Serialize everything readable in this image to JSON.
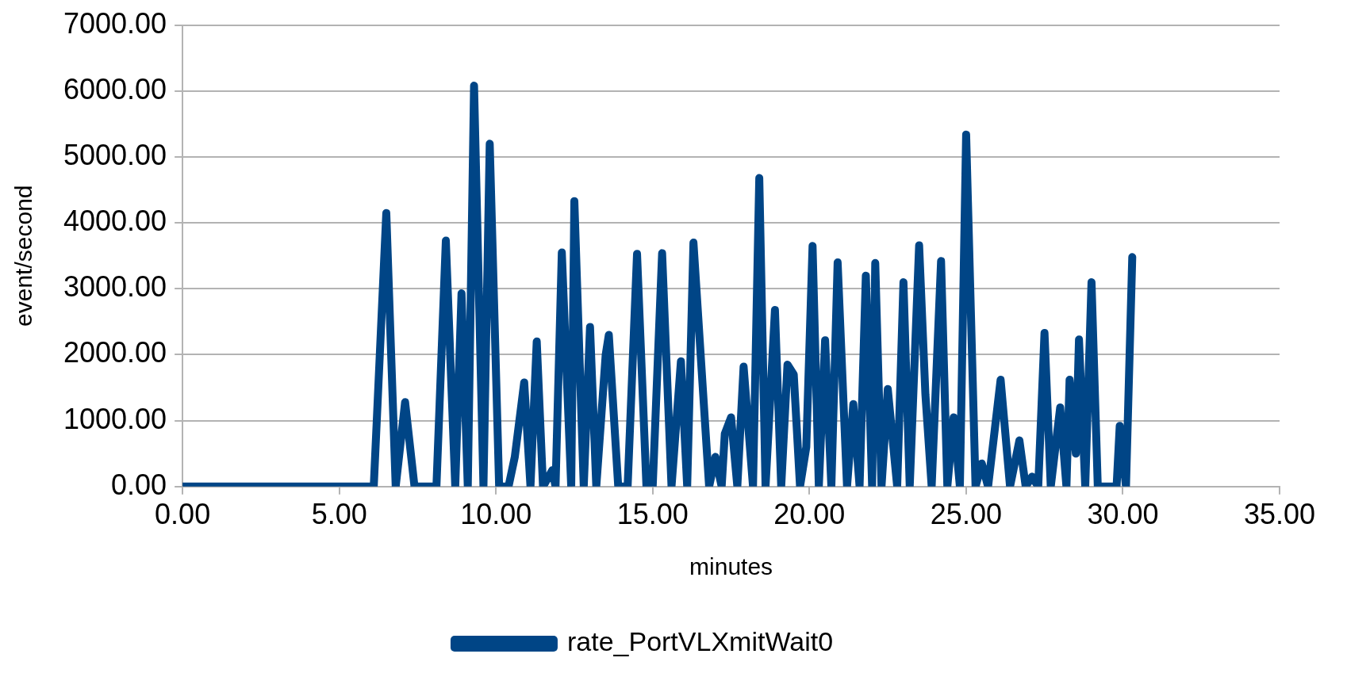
{
  "chart_data": {
    "type": "line",
    "xlabel": "minutes",
    "ylabel": "event/second",
    "xlim": [
      0,
      35
    ],
    "xticks": [
      {
        "value": 0,
        "label": "0.00"
      },
      {
        "value": 5,
        "label": "5.00"
      },
      {
        "value": 10,
        "label": "10.00"
      },
      {
        "value": 15,
        "label": "15.00"
      },
      {
        "value": 20,
        "label": "20.00"
      },
      {
        "value": 25,
        "label": "25.00"
      },
      {
        "value": 30,
        "label": "30.00"
      },
      {
        "value": 35,
        "label": "35.00"
      }
    ],
    "ylim": [
      0,
      7000
    ],
    "yticks": [
      {
        "value": 0,
        "label": "0.00"
      },
      {
        "value": 1000,
        "label": "1000.00"
      },
      {
        "value": 2000,
        "label": "2000.00"
      },
      {
        "value": 3000,
        "label": "3000.00"
      },
      {
        "value": 4000,
        "label": "4000.00"
      },
      {
        "value": 5000,
        "label": "5000.00"
      },
      {
        "value": 6000,
        "label": "6000.00"
      },
      {
        "value": 7000,
        "label": "7000.00"
      }
    ],
    "grid": "y",
    "legend": "bottom",
    "marker": "none",
    "line_style": "solid",
    "series": [
      {
        "name": "rate_PortVLXmitWait0",
        "color": "#004586",
        "x": [
          0,
          6.1,
          6.5,
          6.8,
          7.1,
          7.4,
          8.1,
          8.4,
          8.7,
          8.9,
          9.1,
          9.3,
          9.6,
          9.8,
          10.1,
          10.4,
          10.6,
          10.9,
          11.1,
          11.3,
          11.5,
          11.8,
          11.9,
          12.1,
          12.4,
          12.5,
          12.8,
          13,
          13.2,
          13.5,
          13.6,
          13.9,
          14.2,
          14.5,
          14.8,
          15,
          15.3,
          15.6,
          15.9,
          16.1,
          16.3,
          16.8,
          17,
          17.2,
          17.3,
          17.5,
          17.7,
          17.9,
          18.2,
          18.4,
          18.6,
          18.9,
          19.1,
          19.3,
          19.5,
          19.7,
          19.9,
          20.1,
          20.3,
          20.5,
          20.7,
          20.9,
          21.2,
          21.4,
          21.6,
          21.8,
          22,
          22.1,
          22.3,
          22.5,
          22.8,
          23,
          23.2,
          23.5,
          23.7,
          23.9,
          24.2,
          24.4,
          24.6,
          24.8,
          25,
          25.3,
          25.5,
          25.7,
          26.1,
          26.4,
          26.7,
          26.9,
          27.1,
          27.3,
          27.5,
          27.7,
          28,
          28.2,
          28.3,
          28.5,
          28.6,
          28.8,
          29,
          29.2,
          29.8,
          29.9,
          30.1,
          30.3
        ],
        "values": [
          0,
          0,
          4150,
          0,
          1280,
          0,
          0,
          3730,
          0,
          2930,
          0,
          6080,
          0,
          5200,
          0,
          0,
          450,
          1580,
          0,
          2200,
          0,
          250,
          0,
          3550,
          0,
          4330,
          0,
          2420,
          0,
          2000,
          2300,
          0,
          0,
          3530,
          0,
          0,
          3540,
          0,
          1900,
          0,
          3700,
          0,
          450,
          0,
          800,
          1050,
          0,
          1820,
          0,
          4680,
          0,
          2680,
          0,
          1850,
          1700,
          0,
          600,
          3650,
          0,
          2220,
          0,
          3400,
          0,
          1250,
          0,
          3200,
          0,
          3390,
          0,
          1480,
          0,
          3100,
          0,
          3660,
          1400,
          0,
          3420,
          0,
          1050,
          0,
          5340,
          0,
          350,
          0,
          1620,
          0,
          700,
          0,
          150,
          0,
          2330,
          0,
          1200,
          0,
          1620,
          500,
          2230,
          0,
          3100,
          0,
          0,
          920,
          0,
          3480
        ]
      }
    ]
  }
}
